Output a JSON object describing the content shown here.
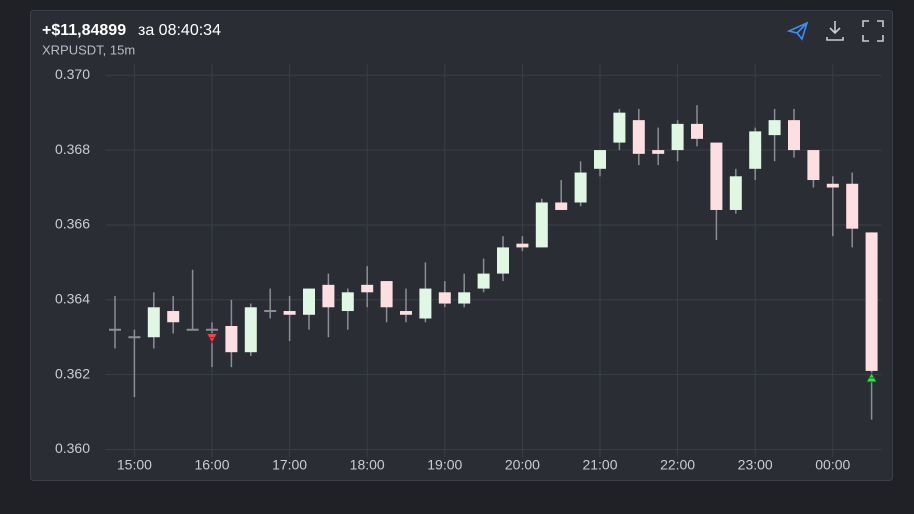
{
  "header": {
    "pnl": "+$11,84899",
    "time": "за 08:40:34",
    "symbol": "XRPUSDT, 15m"
  },
  "chart_data": {
    "type": "candlestick",
    "categories": [
      null,
      "15:00",
      null,
      null,
      null,
      "16:00",
      null,
      null,
      null,
      "17:00",
      null,
      null,
      null,
      "18:00",
      null,
      null,
      null,
      "19:00",
      null,
      null,
      null,
      "20:00",
      null,
      null,
      null,
      "21:00",
      null,
      null,
      null,
      "22:00",
      null,
      null,
      null,
      "23:00",
      null,
      null,
      null,
      "00:00",
      null,
      null
    ],
    "open": [
      0.3632,
      0.363,
      0.363,
      0.3637,
      0.3632,
      0.3632,
      0.3633,
      0.3626,
      0.3637,
      0.3637,
      0.3636,
      0.3644,
      0.3637,
      0.3644,
      0.3645,
      0.3637,
      0.3635,
      0.3642,
      0.3639,
      0.3643,
      0.3647,
      0.3655,
      0.3654,
      0.3666,
      0.3666,
      0.3675,
      0.3682,
      0.3688,
      0.368,
      0.368,
      0.3687,
      0.3682,
      0.3664,
      0.3675,
      0.3684,
      0.3688,
      0.368,
      0.3671,
      0.3671,
      0.3658
    ],
    "high": [
      0.3641,
      0.3632,
      0.3642,
      0.3641,
      0.3648,
      0.3634,
      0.364,
      0.3639,
      0.3643,
      0.3641,
      0.3643,
      0.3647,
      0.3643,
      0.3649,
      0.3645,
      0.3643,
      0.365,
      0.3645,
      0.3647,
      0.3651,
      0.3657,
      0.3657,
      0.3667,
      0.3672,
      0.3677,
      0.368,
      0.3691,
      0.3691,
      0.3686,
      0.3688,
      0.3692,
      0.3682,
      0.3675,
      0.3686,
      0.3691,
      0.3691,
      0.368,
      0.3673,
      0.3674,
      0.3658
    ],
    "low": [
      0.3627,
      0.3614,
      0.3627,
      0.3631,
      0.3632,
      0.3622,
      0.3622,
      0.3625,
      0.3635,
      0.3629,
      0.3632,
      0.363,
      0.3632,
      0.3638,
      0.3634,
      0.3634,
      0.3634,
      0.3638,
      0.3638,
      0.3642,
      0.3645,
      0.3653,
      0.3654,
      0.3664,
      0.3665,
      0.3673,
      0.368,
      0.3676,
      0.3676,
      0.3677,
      0.3681,
      0.3656,
      0.3663,
      0.3672,
      0.3677,
      0.3678,
      0.367,
      0.3657,
      0.3654,
      0.3608
    ],
    "close": [
      0.3632,
      0.363,
      0.3638,
      0.3634,
      0.3632,
      0.3632,
      0.3626,
      0.3638,
      0.3637,
      0.3636,
      0.3643,
      0.3638,
      0.3642,
      0.3642,
      0.3638,
      0.3636,
      0.3643,
      0.3639,
      0.3642,
      0.3647,
      0.3654,
      0.3654,
      0.3666,
      0.3664,
      0.3674,
      0.368,
      0.369,
      0.3679,
      0.3679,
      0.3687,
      0.3683,
      0.3664,
      0.3673,
      0.3685,
      0.3688,
      0.368,
      0.3672,
      0.367,
      0.3659,
      0.3621
    ],
    "up_color": "#dff7e3",
    "down_color": "#fddfe1",
    "wick_color": "#8b8e94",
    "markers": [
      {
        "index": 5,
        "kind": "sell",
        "color": "#e84b55"
      },
      {
        "index": 39,
        "kind": "buy",
        "color": "#3ddc4a"
      }
    ],
    "ylim": [
      0.3598,
      0.3703
    ],
    "yticks": [
      {
        "value": 0.36,
        "label": "0.360"
      },
      {
        "value": 0.362,
        "label": "0.362"
      },
      {
        "value": 0.364,
        "label": "0.364"
      },
      {
        "value": 0.366,
        "label": "0.366"
      },
      {
        "value": 0.368,
        "label": "0.368"
      },
      {
        "value": 0.37,
        "label": "0.370"
      }
    ],
    "grid": true
  }
}
